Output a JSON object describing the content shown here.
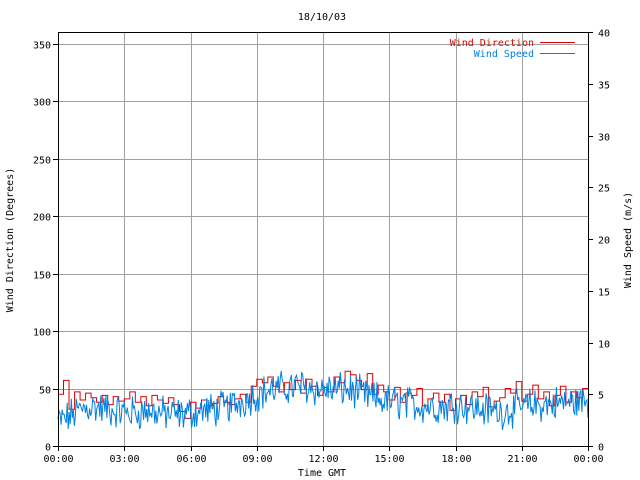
{
  "chart_data": {
    "type": "line",
    "title": "18/10/03",
    "xlabel": "Time GMT",
    "ylabel_left": "Wind Direction (Degrees)",
    "ylabel_right": "Wind Speed (m/s)",
    "x_range_hours": [
      0,
      24
    ],
    "x_tick_labels": [
      "00:00",
      "03:00",
      "06:00",
      "09:00",
      "12:00",
      "15:00",
      "18:00",
      "21:00",
      "00:00"
    ],
    "y_left_range": [
      0,
      360
    ],
    "y_left_ticks": [
      0,
      50,
      100,
      150,
      200,
      250,
      300,
      350
    ],
    "y_right_range": [
      0,
      40
    ],
    "y_right_ticks": [
      0,
      5,
      10,
      15,
      20,
      25,
      30,
      35,
      40
    ],
    "grid": true,
    "legend_position": "top-right",
    "series": [
      {
        "name": "Wind Direction",
        "axis": "left",
        "color": "#dd0000",
        "step": true,
        "x_hours": [
          0.0,
          0.25,
          0.5,
          0.75,
          1.0,
          1.25,
          1.5,
          1.75,
          2.0,
          2.25,
          2.5,
          2.75,
          3.0,
          3.25,
          3.5,
          3.75,
          4.0,
          4.25,
          4.5,
          4.75,
          5.0,
          5.25,
          5.5,
          5.75,
          6.0,
          6.25,
          6.5,
          6.75,
          7.0,
          7.25,
          7.5,
          7.75,
          8.0,
          8.25,
          8.5,
          8.75,
          9.0,
          9.25,
          9.5,
          9.75,
          10.0,
          10.25,
          10.5,
          10.75,
          11.0,
          11.25,
          11.5,
          11.75,
          12.0,
          12.25,
          12.5,
          12.75,
          13.0,
          13.25,
          13.5,
          13.75,
          14.0,
          14.25,
          14.5,
          14.75,
          15.0,
          15.25,
          15.5,
          15.75,
          16.0,
          16.25,
          16.5,
          16.75,
          17.0,
          17.25,
          17.5,
          17.75,
          18.0,
          18.25,
          18.5,
          18.75,
          19.0,
          19.25,
          19.5,
          19.75,
          20.0,
          20.25,
          20.5,
          20.75,
          21.0,
          21.25,
          21.5,
          21.75,
          22.0,
          22.25,
          22.5,
          22.75,
          23.0,
          23.25,
          23.5,
          23.75
        ],
        "values": [
          45,
          57,
          32,
          47,
          40,
          46,
          42,
          38,
          44,
          36,
          43,
          39,
          41,
          47,
          38,
          43,
          35,
          44,
          40,
          37,
          42,
          36,
          30,
          24,
          38,
          33,
          40,
          35,
          37,
          43,
          38,
          36,
          41,
          45,
          38,
          52,
          58,
          55,
          60,
          52,
          47,
          55,
          49,
          57,
          46,
          58,
          52,
          44,
          51,
          47,
          60,
          55,
          65,
          62,
          57,
          49,
          63,
          45,
          53,
          47,
          40,
          51,
          38,
          46,
          44,
          50,
          35,
          41,
          46,
          38,
          45,
          31,
          41,
          44,
          36,
          47,
          43,
          51,
          34,
          39,
          42,
          50,
          46,
          56,
          39,
          45,
          53,
          41,
          47,
          35,
          44,
          52,
          38,
          47,
          42,
          50
        ]
      },
      {
        "name": "Wind Speed",
        "axis": "right",
        "color": "#0080e0",
        "x_hours": [
          0,
          0.5,
          1,
          1.5,
          2,
          2.5,
          3,
          3.5,
          4,
          4.5,
          5,
          5.5,
          6,
          6.5,
          7,
          7.5,
          8,
          8.5,
          9,
          9.5,
          10,
          10.5,
          11,
          11.5,
          12,
          12.5,
          13,
          13.5,
          14,
          14.5,
          15,
          15.5,
          16,
          16.5,
          17,
          17.5,
          18,
          18.5,
          19,
          19.5,
          20,
          20.5,
          21,
          21.5,
          22,
          22.5,
          23,
          23.5,
          24
        ],
        "values": [
          2.4,
          2.8,
          3.5,
          3.8,
          3.6,
          3.4,
          3.3,
          3.2,
          3.4,
          3.2,
          3.1,
          3.0,
          3.2,
          3.4,
          3.5,
          3.7,
          4.0,
          4.5,
          5.0,
          5.3,
          5.5,
          5.7,
          5.8,
          5.6,
          5.5,
          5.4,
          5.5,
          5.2,
          4.8,
          4.5,
          4.3,
          4.2,
          4.0,
          3.9,
          3.8,
          3.8,
          4.0,
          3.9,
          3.6,
          3.5,
          3.3,
          3.5,
          3.8,
          3.9,
          4.0,
          4.1,
          4.2,
          4.3,
          4.3
        ]
      }
    ]
  }
}
